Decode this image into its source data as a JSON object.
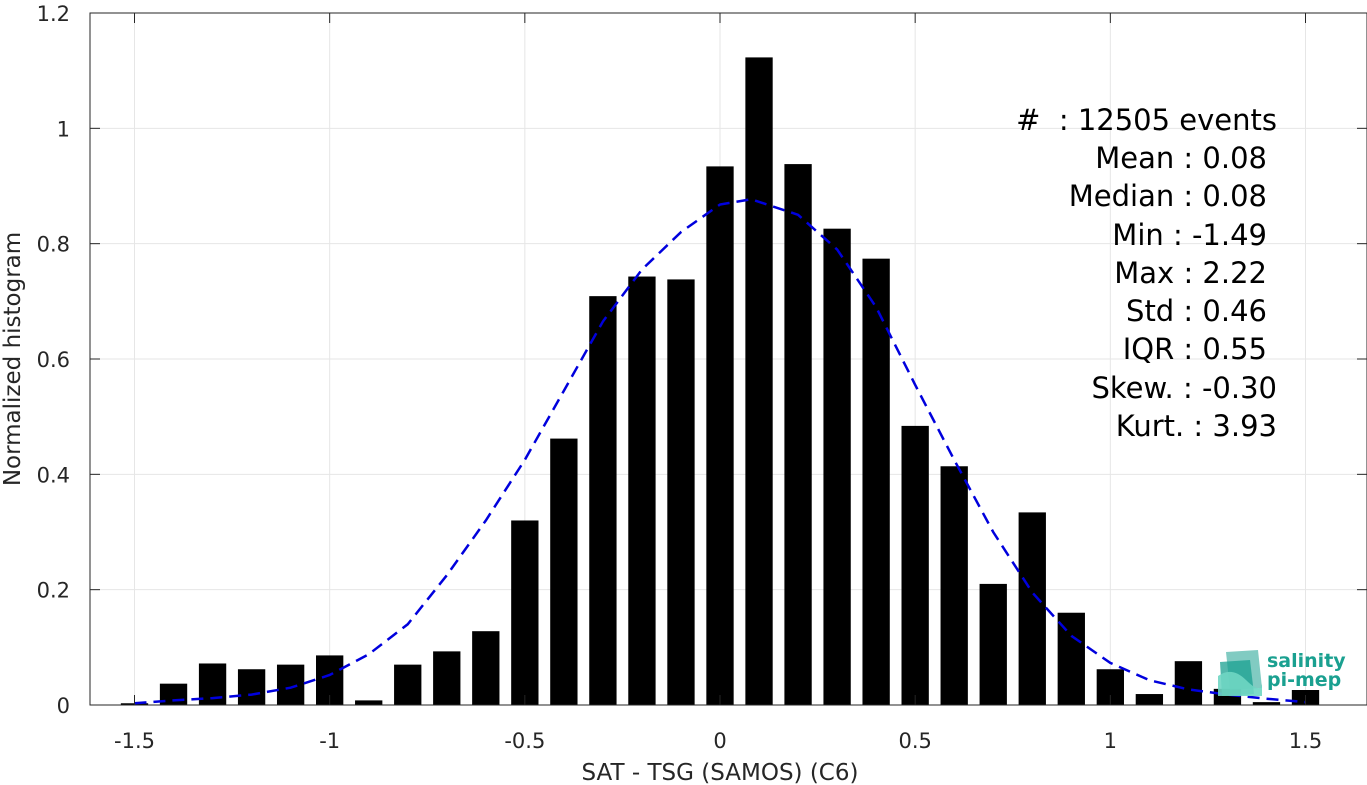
{
  "chart_data": {
    "type": "bar",
    "xlabel": "SAT - TSG (SAMOS) (C6)",
    "ylabel": "Normalized histogram",
    "xlim": [
      -1.6,
      1.6
    ],
    "ylim": [
      0,
      1.2
    ],
    "grid": true,
    "x_ticks": [
      -1.5,
      -1,
      -0.5,
      0,
      0.5,
      1,
      1.5
    ],
    "x_tick_labels": [
      "-1.5",
      "-1",
      "-0.5",
      "0",
      "0.5",
      "1",
      "1.5"
    ],
    "y_ticks": [
      0,
      0.2,
      0.4,
      0.6,
      0.8,
      1,
      1.2
    ],
    "y_tick_labels": [
      "0",
      "0.2",
      "0.4",
      "0.6",
      "0.8",
      "1",
      "1.2"
    ],
    "bar_width": 0.07,
    "bars": [
      {
        "x": -1.5,
        "y": 0.003
      },
      {
        "x": -1.4,
        "y": 0.037
      },
      {
        "x": -1.3,
        "y": 0.072
      },
      {
        "x": -1.2,
        "y": 0.062
      },
      {
        "x": -1.1,
        "y": 0.07
      },
      {
        "x": -1.0,
        "y": 0.086
      },
      {
        "x": -0.9,
        "y": 0.008
      },
      {
        "x": -0.8,
        "y": 0.07
      },
      {
        "x": -0.7,
        "y": 0.093
      },
      {
        "x": -0.6,
        "y": 0.128
      },
      {
        "x": -0.5,
        "y": 0.32
      },
      {
        "x": -0.4,
        "y": 0.462
      },
      {
        "x": -0.3,
        "y": 0.709
      },
      {
        "x": -0.2,
        "y": 0.743
      },
      {
        "x": -0.1,
        "y": 0.738
      },
      {
        "x": 0.0,
        "y": 0.934
      },
      {
        "x": 0.1,
        "y": 1.123
      },
      {
        "x": 0.2,
        "y": 0.938
      },
      {
        "x": 0.3,
        "y": 0.826
      },
      {
        "x": 0.4,
        "y": 0.774
      },
      {
        "x": 0.5,
        "y": 0.484
      },
      {
        "x": 0.6,
        "y": 0.414
      },
      {
        "x": 0.7,
        "y": 0.21
      },
      {
        "x": 0.8,
        "y": 0.334
      },
      {
        "x": 0.9,
        "y": 0.16
      },
      {
        "x": 1.0,
        "y": 0.062
      },
      {
        "x": 1.1,
        "y": 0.019
      },
      {
        "x": 1.2,
        "y": 0.076
      },
      {
        "x": 1.3,
        "y": 0.028
      },
      {
        "x": 1.4,
        "y": 0.005
      },
      {
        "x": 1.5,
        "y": 0.026
      }
    ],
    "fit_curve": {
      "color": "#0000dd",
      "style": "dashed",
      "points": [
        [
          -1.5,
          0.003
        ],
        [
          -1.4,
          0.008
        ],
        [
          -1.3,
          0.012
        ],
        [
          -1.2,
          0.018
        ],
        [
          -1.1,
          0.03
        ],
        [
          -1.0,
          0.052
        ],
        [
          -0.9,
          0.088
        ],
        [
          -0.8,
          0.14
        ],
        [
          -0.7,
          0.225
        ],
        [
          -0.6,
          0.32
        ],
        [
          -0.5,
          0.425
        ],
        [
          -0.4,
          0.545
        ],
        [
          -0.3,
          0.665
        ],
        [
          -0.2,
          0.755
        ],
        [
          -0.1,
          0.82
        ],
        [
          0.0,
          0.868
        ],
        [
          0.08,
          0.877
        ],
        [
          0.2,
          0.85
        ],
        [
          0.3,
          0.79
        ],
        [
          0.4,
          0.69
        ],
        [
          0.5,
          0.555
        ],
        [
          0.6,
          0.425
        ],
        [
          0.7,
          0.3
        ],
        [
          0.8,
          0.195
        ],
        [
          0.9,
          0.12
        ],
        [
          1.0,
          0.073
        ],
        [
          1.1,
          0.043
        ],
        [
          1.2,
          0.027
        ],
        [
          1.3,
          0.018
        ],
        [
          1.4,
          0.011
        ],
        [
          1.5,
          0.005
        ]
      ]
    }
  },
  "stats": {
    "events": "#  : 12505 events",
    "mean": "Mean : 0.08",
    "median": "Median : 0.08",
    "min": "Min : -1.49",
    "max": "Max : 2.22",
    "std": "Std : 0.46",
    "iqr": "IQR : 0.55",
    "skew": "Skew. : -0.30",
    "kurt": "Kurt. : 3.93"
  },
  "logo": {
    "line1": "salinity",
    "line2": "pi-mep",
    "color": "#1aa090"
  }
}
